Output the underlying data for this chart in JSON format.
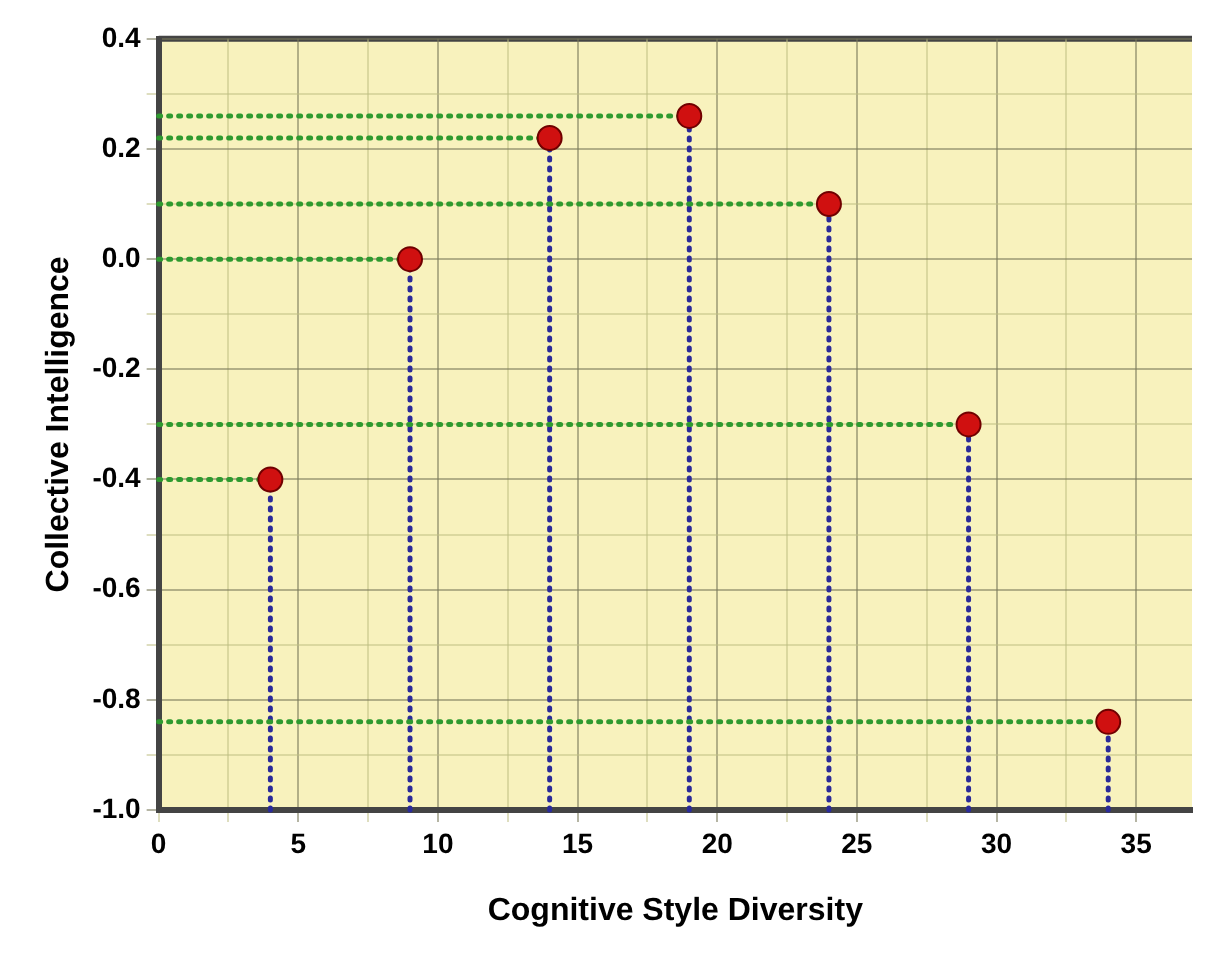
{
  "chart_data": {
    "type": "scatter",
    "xlabel": "Cognitive Style Diversity",
    "ylabel": "Collective Intelligence",
    "x": [
      4,
      9,
      14,
      19,
      24,
      29,
      34
    ],
    "series": [
      {
        "color": "#d01010",
        "values": [
          -0.4,
          0.0,
          0.22,
          0.26,
          0.1,
          -0.3,
          -0.84
        ],
        "errors": [
          [
            -1,
            -0.4
          ],
          [
            -1,
            0.0
          ],
          [
            -1,
            0.22
          ],
          [
            -1,
            0.26
          ],
          [
            -1,
            0.1
          ],
          [
            -1,
            -0.3
          ],
          [
            -1,
            -0.84
          ]
        ],
        "xerrors": [
          [
            0,
            4
          ],
          [
            0,
            9
          ],
          [
            0,
            14
          ],
          [
            0,
            19
          ],
          [
            0,
            24
          ],
          [
            0,
            29
          ],
          [
            0,
            34
          ]
        ]
      }
    ],
    "xlim": [
      0,
      37
    ],
    "ylim": [
      -1,
      0.4
    ],
    "xticks": [
      0,
      {
        "value": 2.5,
        "label": null
      },
      5,
      {
        "value": 7.5,
        "label": null
      },
      10,
      {
        "value": 12.5,
        "label": null
      },
      15,
      {
        "value": 17.5,
        "label": null
      },
      20,
      {
        "value": 22.5,
        "label": null
      },
      25,
      {
        "value": 27.5,
        "label": null
      },
      30,
      {
        "value": 32.5,
        "label": null
      },
      35
    ],
    "yticks": [
      {
        "value": -1,
        "label": "-1.0"
      },
      {
        "value": -0.9,
        "label": null
      },
      {
        "value": -0.8,
        "label": "-0.8"
      },
      {
        "value": -0.7,
        "label": null
      },
      {
        "value": -0.6,
        "label": "-0.6"
      },
      {
        "value": -0.5,
        "label": null
      },
      {
        "value": -0.4,
        "label": "-0.4"
      },
      {
        "value": -0.3,
        "label": null
      },
      {
        "value": -0.2,
        "label": "-0.2"
      },
      {
        "value": -0.1,
        "label": null
      },
      {
        "value": 0,
        "label": "0.0"
      },
      {
        "value": 0.1,
        "label": null
      },
      {
        "value": 0.2,
        "label": "0.2"
      },
      {
        "value": 0.3,
        "label": null
      },
      {
        "value": 0.4,
        "label": "0.4"
      }
    ],
    "grid": true,
    "legend": false,
    "marker": "circle"
  }
}
